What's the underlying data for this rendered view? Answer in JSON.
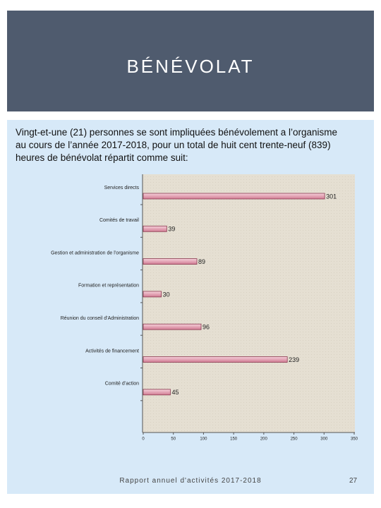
{
  "header": {
    "title": "BÉNÉVOLAT"
  },
  "intro": "Vingt-et-une  (21) personnes se sont impliquées bénévolement a l’organisme au cours de l’année 2017-2018, pour un total de huit cent trente-neuf (839) heures de bénévolat répartit comme suit:",
  "chart_data": {
    "type": "bar",
    "orientation": "horizontal",
    "categories": [
      "Services directs",
      "Comités de travail",
      "Gestion et administration de l’organisme",
      "Formation et représentation",
      "Réunion du conseil d’Administration",
      "Activités de financement",
      "Comité d’action"
    ],
    "values": [
      301,
      39,
      89,
      30,
      96,
      239,
      45
    ],
    "color": "#e8a2b4",
    "xlim": [
      0,
      350
    ],
    "xticks": [
      0,
      50,
      100,
      150,
      200,
      250,
      300,
      350
    ],
    "grid": false
  },
  "footer": {
    "text": "Rapport annuel d'activités 2017-2018",
    "page": "27"
  }
}
